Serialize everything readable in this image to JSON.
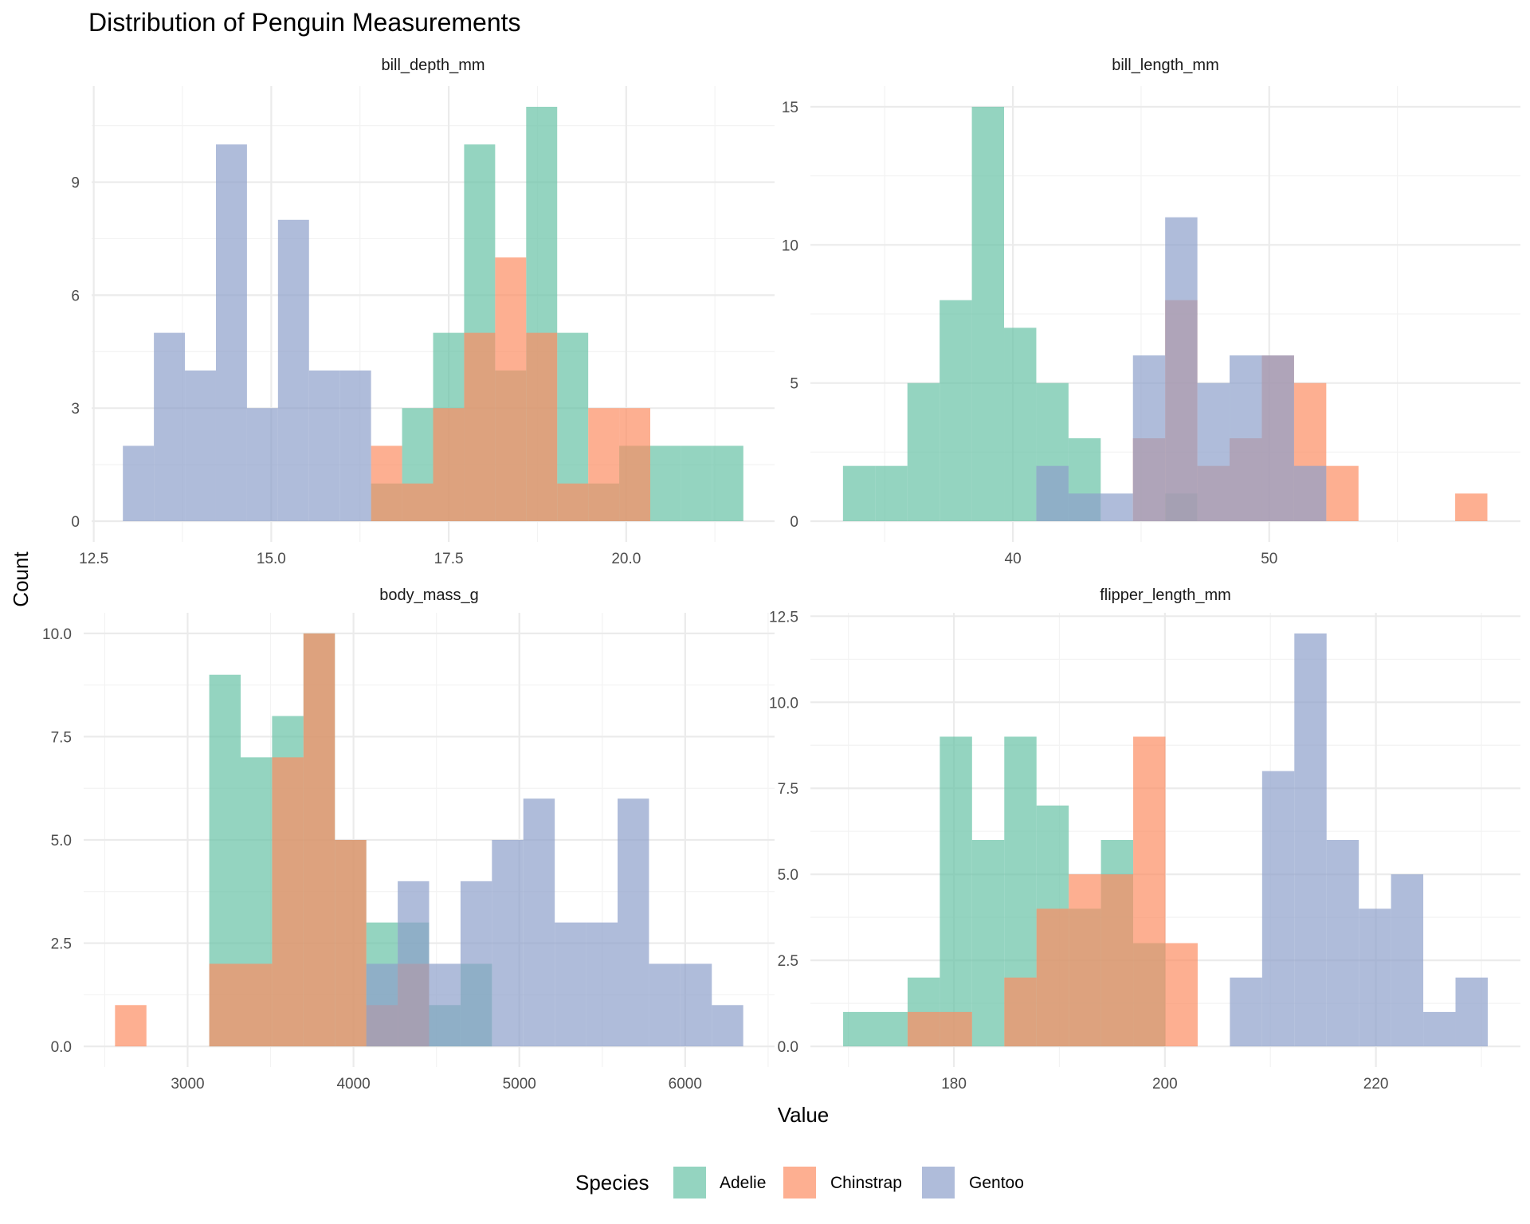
{
  "chart_data": {
    "type": "bar",
    "subtype": "faceted-overlapping-histogram",
    "title": "Distribution of Penguin Measurements",
    "xlabel": "Value",
    "ylabel": "Count",
    "legend": {
      "title": "Species",
      "position": "bottom",
      "entries": [
        {
          "name": "Adelie",
          "color": "#66c2a5"
        },
        {
          "name": "Chinstrap",
          "color": "#fc8d62"
        },
        {
          "name": "Gentoo",
          "color": "#8da0cb"
        }
      ]
    },
    "bar_opacity": 0.7,
    "grid": true,
    "panels": [
      {
        "name": "bill_depth_mm",
        "bin_start": 12.91,
        "bin_width": 0.437,
        "xlim": [
          12.47,
          22.09
        ],
        "ylim": [
          -0.55,
          11.55
        ],
        "x_ticks": [
          12.5,
          15.0,
          17.5,
          20.0
        ],
        "x_tick_labels": [
          "12.5",
          "15.0",
          "17.5",
          "20.0"
        ],
        "x_minor": [
          13.75,
          16.25,
          18.75,
          21.25
        ],
        "y_ticks": [
          0,
          3,
          6,
          9
        ],
        "y_tick_labels": [
          "0",
          "3",
          "6",
          "9"
        ],
        "y_minor": [
          1.5,
          4.5,
          7.5,
          10.5
        ],
        "series": [
          {
            "name": "Adelie",
            "counts": [
              0,
              0,
              0,
              0,
              0,
              0,
              0,
              0,
              1,
              3,
              5,
              10,
              4,
              11,
              5,
              1,
              2,
              2,
              2,
              2
            ]
          },
          {
            "name": "Chinstrap",
            "counts": [
              0,
              0,
              0,
              0,
              0,
              0,
              0,
              0,
              2,
              1,
              3,
              5,
              7,
              5,
              1,
              3,
              3,
              0,
              0,
              0
            ]
          },
          {
            "name": "Gentoo",
            "counts": [
              2,
              5,
              4,
              10,
              3,
              8,
              4,
              4,
              0,
              0,
              0,
              0,
              0,
              0,
              0,
              0,
              0,
              0,
              0,
              0
            ]
          }
        ]
      },
      {
        "name": "bill_length_mm",
        "bin_start": 33.37,
        "bin_width": 1.257,
        "xlim": [
          32.1,
          59.8
        ],
        "ylim": [
          -0.75,
          15.75
        ],
        "x_ticks": [
          40,
          50
        ],
        "x_tick_labels": [
          "40",
          "50"
        ],
        "x_minor": [
          35,
          45,
          55
        ],
        "y_ticks": [
          0,
          5,
          10,
          15
        ],
        "y_tick_labels": [
          "0",
          "5",
          "10",
          "15"
        ],
        "y_minor": [
          2.5,
          7.5,
          12.5
        ],
        "series": [
          {
            "name": "Adelie",
            "counts": [
              2,
              2,
              5,
              8,
              15,
              7,
              5,
              3,
              0,
              0,
              1,
              0,
              0,
              0,
              0,
              0,
              0,
              0,
              0,
              0
            ]
          },
          {
            "name": "Chinstrap",
            "counts": [
              0,
              0,
              0,
              0,
              0,
              0,
              0,
              0,
              0,
              3,
              8,
              2,
              3,
              6,
              5,
              2,
              0,
              0,
              0,
              1
            ]
          },
          {
            "name": "Gentoo",
            "counts": [
              0,
              0,
              0,
              0,
              0,
              0,
              2,
              1,
              1,
              6,
              11,
              5,
              6,
              6,
              2,
              0,
              0,
              0,
              0,
              0
            ]
          }
        ]
      },
      {
        "name": "body_mass_g",
        "bin_start": 2562,
        "bin_width": 189.4,
        "xlim": [
          2373,
          6539
        ],
        "ylim": [
          -0.5,
          10.5
        ],
        "x_ticks": [
          3000,
          4000,
          5000,
          6000
        ],
        "x_tick_labels": [
          "3000",
          "4000",
          "5000",
          "6000"
        ],
        "x_minor": [
          2500,
          3500,
          4500,
          5500,
          6500
        ],
        "y_ticks": [
          0,
          2.5,
          5,
          7.5,
          10
        ],
        "y_tick_labels": [
          "0.0",
          "2.5",
          "5.0",
          "7.5",
          "10.0"
        ],
        "y_minor": [
          1.25,
          3.75,
          6.25,
          8.75
        ],
        "series": [
          {
            "name": "Adelie",
            "counts": [
              0,
              0,
              0,
              9,
              7,
              8,
              10,
              5,
              3,
              3,
              1,
              2,
              0,
              0,
              0,
              0,
              0,
              0,
              0,
              0
            ]
          },
          {
            "name": "Chinstrap",
            "counts": [
              1,
              0,
              0,
              2,
              2,
              7,
              10,
              5,
              1,
              2,
              0,
              0,
              0,
              0,
              0,
              0,
              0,
              0,
              0,
              0
            ]
          },
          {
            "name": "Gentoo",
            "counts": [
              0,
              0,
              0,
              0,
              0,
              0,
              0,
              0,
              2,
              4,
              2,
              4,
              5,
              6,
              3,
              3,
              6,
              2,
              2,
              1
            ]
          }
        ]
      },
      {
        "name": "flipper_length_mm",
        "bin_start": 169.5,
        "bin_width": 3.055,
        "xlim": [
          166.4,
          233.7
        ],
        "ylim": [
          -0.6,
          12.6
        ],
        "x_ticks": [
          180,
          200,
          220
        ],
        "x_tick_labels": [
          "180",
          "200",
          "220"
        ],
        "x_minor": [
          170,
          190,
          210,
          230
        ],
        "y_ticks": [
          0,
          2.5,
          5,
          7.5,
          10,
          12.5
        ],
        "y_tick_labels": [
          "0.0",
          "2.5",
          "5.0",
          "7.5",
          "10.0",
          "12.5"
        ],
        "y_minor": [
          1.25,
          3.75,
          6.25,
          8.75,
          11.25
        ],
        "series": [
          {
            "name": "Adelie",
            "counts": [
              1,
              1,
              2,
              9,
              6,
              9,
              7,
              4,
              6,
              3,
              0,
              0,
              0,
              0,
              0,
              0,
              0,
              0,
              0,
              0
            ]
          },
          {
            "name": "Chinstrap",
            "counts": [
              0,
              0,
              1,
              1,
              0,
              2,
              4,
              5,
              5,
              9,
              3,
              0,
              0,
              0,
              0,
              0,
              0,
              0,
              0,
              0
            ]
          },
          {
            "name": "Gentoo",
            "counts": [
              0,
              0,
              0,
              0,
              0,
              0,
              0,
              0,
              0,
              0,
              0,
              0,
              2,
              8,
              12,
              6,
              4,
              5,
              1,
              2
            ]
          }
        ]
      }
    ]
  }
}
